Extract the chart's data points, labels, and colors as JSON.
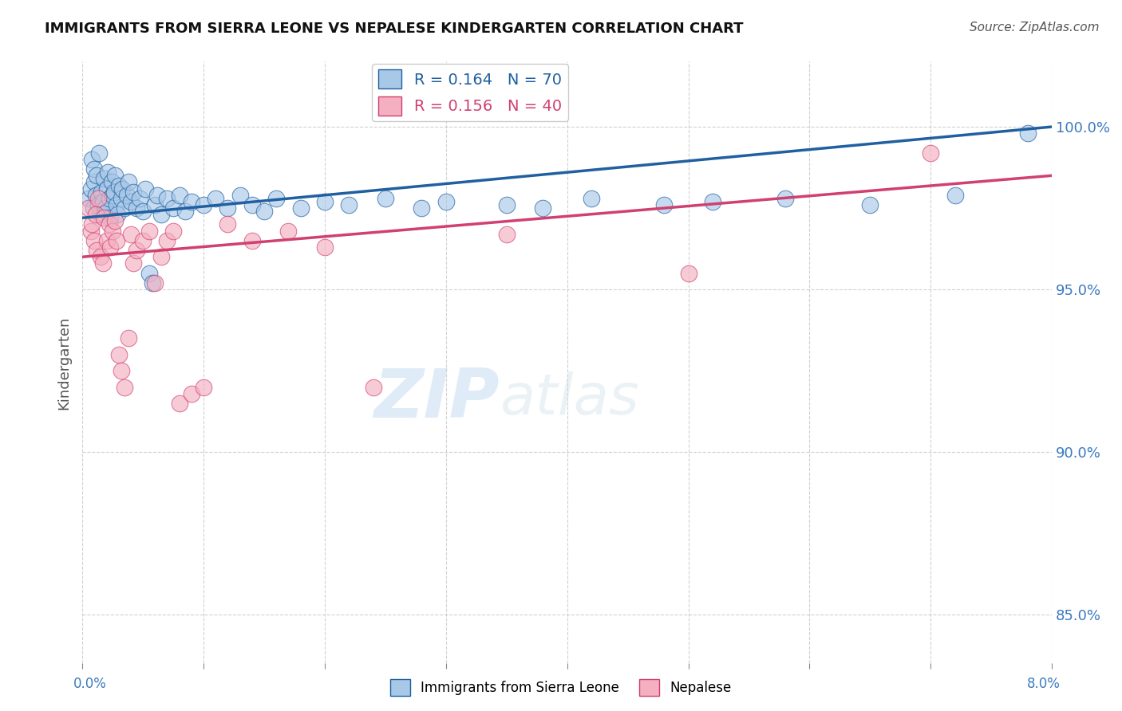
{
  "title": "IMMIGRANTS FROM SIERRA LEONE VS NEPALESE KINDERGARTEN CORRELATION CHART",
  "source": "Source: ZipAtlas.com",
  "ylabel": "Kindergarten",
  "ytick_values": [
    85.0,
    90.0,
    95.0,
    100.0
  ],
  "xlim": [
    0.0,
    8.0
  ],
  "ylim": [
    83.5,
    102.0
  ],
  "blue_color": "#a8c8e8",
  "pink_color": "#f4afc0",
  "trendline_blue": "#2060a0",
  "trendline_pink": "#d04070",
  "watermark_zip": "ZIP",
  "watermark_atlas": "atlas",
  "background_color": "#ffffff",
  "grid_color": "#cccccc",
  "title_color": "#111111",
  "axis_label_color": "#3a7abf",
  "blue_R": "0.164",
  "blue_N": "70",
  "pink_R": "0.156",
  "pink_N": "40",
  "blue_trendline_x": [
    0.0,
    8.0
  ],
  "blue_trendline_y": [
    97.2,
    100.0
  ],
  "pink_trendline_x": [
    0.0,
    8.0
  ],
  "pink_trendline_y": [
    96.0,
    98.5
  ],
  "blue_scatter_x": [
    0.05,
    0.07,
    0.08,
    0.09,
    0.1,
    0.1,
    0.11,
    0.12,
    0.13,
    0.14,
    0.15,
    0.16,
    0.17,
    0.18,
    0.19,
    0.2,
    0.2,
    0.21,
    0.22,
    0.23,
    0.24,
    0.25,
    0.26,
    0.27,
    0.28,
    0.29,
    0.3,
    0.32,
    0.33,
    0.35,
    0.37,
    0.38,
    0.4,
    0.42,
    0.45,
    0.47,
    0.5,
    0.52,
    0.55,
    0.58,
    0.6,
    0.62,
    0.65,
    0.7,
    0.75,
    0.8,
    0.85,
    0.9,
    1.0,
    1.1,
    1.2,
    1.3,
    1.4,
    1.5,
    1.6,
    1.8,
    2.0,
    2.2,
    2.5,
    2.8,
    3.0,
    3.5,
    3.8,
    4.2,
    4.8,
    5.2,
    5.8,
    6.5,
    7.2,
    7.8
  ],
  "blue_scatter_y": [
    97.8,
    98.1,
    99.0,
    97.5,
    98.3,
    98.7,
    97.9,
    98.5,
    97.6,
    99.2,
    97.3,
    98.0,
    97.7,
    98.4,
    97.5,
    98.1,
    97.4,
    98.6,
    97.8,
    97.2,
    98.3,
    97.9,
    98.0,
    98.5,
    97.6,
    97.3,
    98.2,
    97.8,
    98.1,
    97.5,
    97.9,
    98.3,
    97.7,
    98.0,
    97.5,
    97.8,
    97.4,
    98.1,
    95.5,
    95.2,
    97.6,
    97.9,
    97.3,
    97.8,
    97.5,
    97.9,
    97.4,
    97.7,
    97.6,
    97.8,
    97.5,
    97.9,
    97.6,
    97.4,
    97.8,
    97.5,
    97.7,
    97.6,
    97.8,
    97.5,
    97.7,
    97.6,
    97.5,
    97.8,
    97.6,
    97.7,
    97.8,
    97.6,
    97.9,
    99.8
  ],
  "pink_scatter_x": [
    0.05,
    0.07,
    0.08,
    0.1,
    0.11,
    0.12,
    0.13,
    0.15,
    0.17,
    0.18,
    0.2,
    0.22,
    0.23,
    0.25,
    0.27,
    0.28,
    0.3,
    0.32,
    0.35,
    0.38,
    0.4,
    0.42,
    0.45,
    0.5,
    0.55,
    0.6,
    0.65,
    0.7,
    0.75,
    0.8,
    0.9,
    1.0,
    1.2,
    1.4,
    1.7,
    2.0,
    2.4,
    3.5,
    5.0,
    7.0
  ],
  "pink_scatter_y": [
    97.5,
    96.8,
    97.0,
    96.5,
    97.3,
    96.2,
    97.8,
    96.0,
    95.8,
    97.2,
    96.5,
    97.0,
    96.3,
    96.8,
    97.1,
    96.5,
    93.0,
    92.5,
    92.0,
    93.5,
    96.7,
    95.8,
    96.2,
    96.5,
    96.8,
    95.2,
    96.0,
    96.5,
    96.8,
    91.5,
    91.8,
    92.0,
    97.0,
    96.5,
    96.8,
    96.3,
    92.0,
    96.7,
    95.5,
    99.2
  ]
}
